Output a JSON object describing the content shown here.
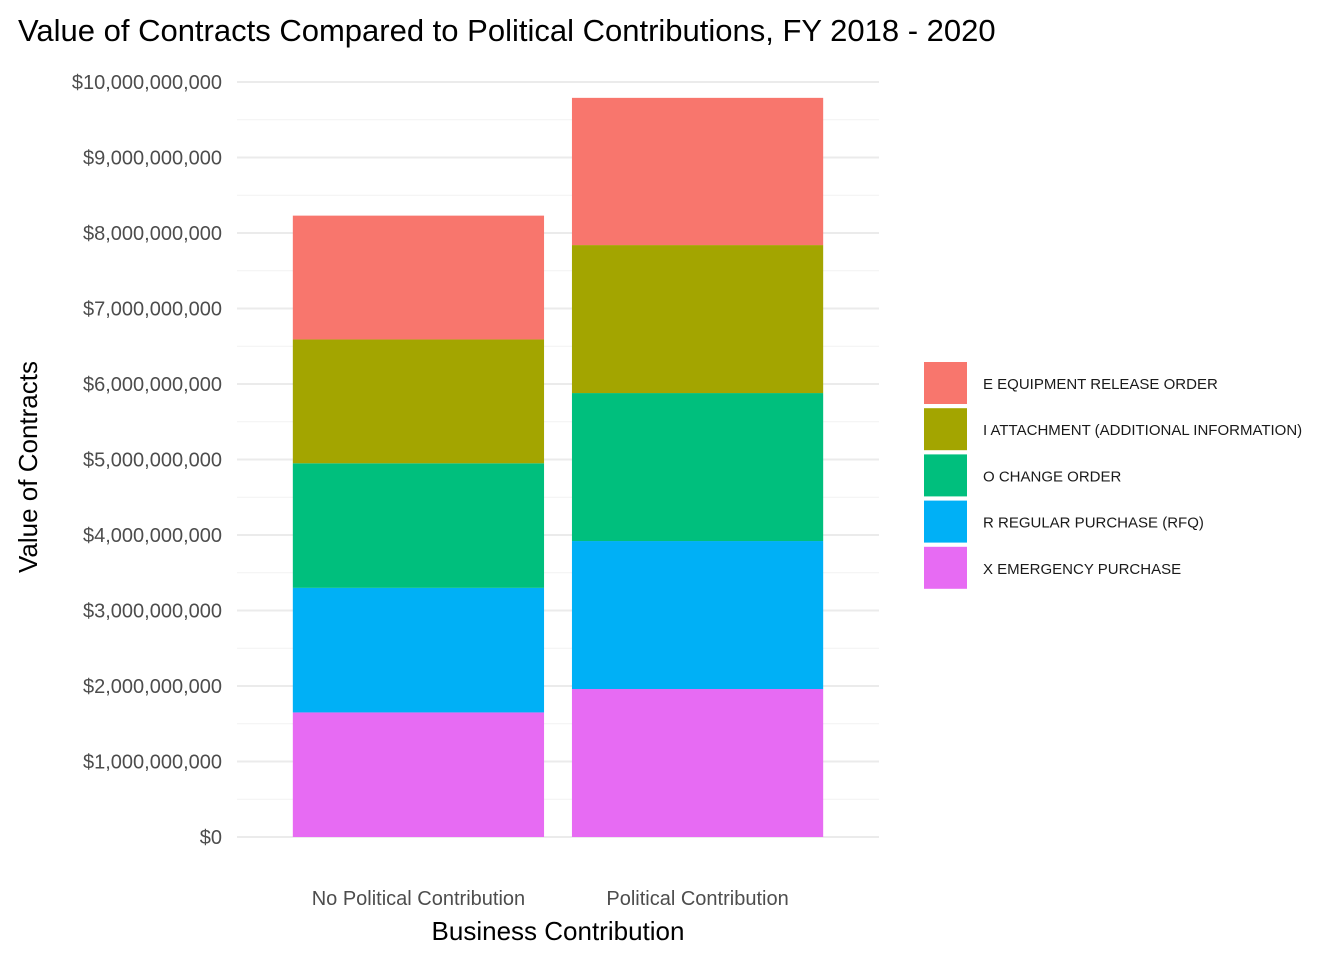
{
  "chart_data": {
    "type": "bar",
    "stacked": true,
    "title": "Value of Contracts Compared to Political Contributions, FY 2018 - 2020",
    "xlabel": "Business Contribution",
    "ylabel": "Value of Contracts",
    "ylim": [
      0,
      10000000000
    ],
    "yticks": [
      0,
      1000000000,
      2000000000,
      3000000000,
      4000000000,
      5000000000,
      6000000000,
      7000000000,
      8000000000,
      9000000000,
      10000000000
    ],
    "ytick_labels": [
      "$0",
      "$1,000,000,000",
      "$2,000,000,000",
      "$3,000,000,000",
      "$4,000,000,000",
      "$5,000,000,000",
      "$6,000,000,000",
      "$7,000,000,000",
      "$8,000,000,000",
      "$9,000,000,000",
      "$10,000,000,000"
    ],
    "categories": [
      "No Political Contribution",
      "Political Contribution"
    ],
    "series": [
      {
        "name": "X EMERGENCY PURCHASE",
        "color": "#E76BF3",
        "values": [
          1650000000,
          1960000000
        ]
      },
      {
        "name": "R REGULAR PURCHASE (RFQ)",
        "color": "#00B0F6",
        "values": [
          1650000000,
          1960000000
        ]
      },
      {
        "name": "O CHANGE ORDER",
        "color": "#00BF7D",
        "values": [
          1650000000,
          1960000000
        ]
      },
      {
        "name": "I ATTACHMENT (ADDITIONAL INFORMATION)",
        "color": "#A3A500",
        "values": [
          1640000000,
          1960000000
        ]
      },
      {
        "name": "E EQUIPMENT RELEASE ORDER",
        "color": "#F8766D",
        "values": [
          1640000000,
          1950000000
        ]
      }
    ],
    "legend_order": [
      "E EQUIPMENT RELEASE ORDER",
      "I ATTACHMENT (ADDITIONAL INFORMATION)",
      "O CHANGE ORDER",
      "R REGULAR PURCHASE (RFQ)",
      "X EMERGENCY PURCHASE"
    ],
    "grid": true,
    "legend_position": "right"
  }
}
